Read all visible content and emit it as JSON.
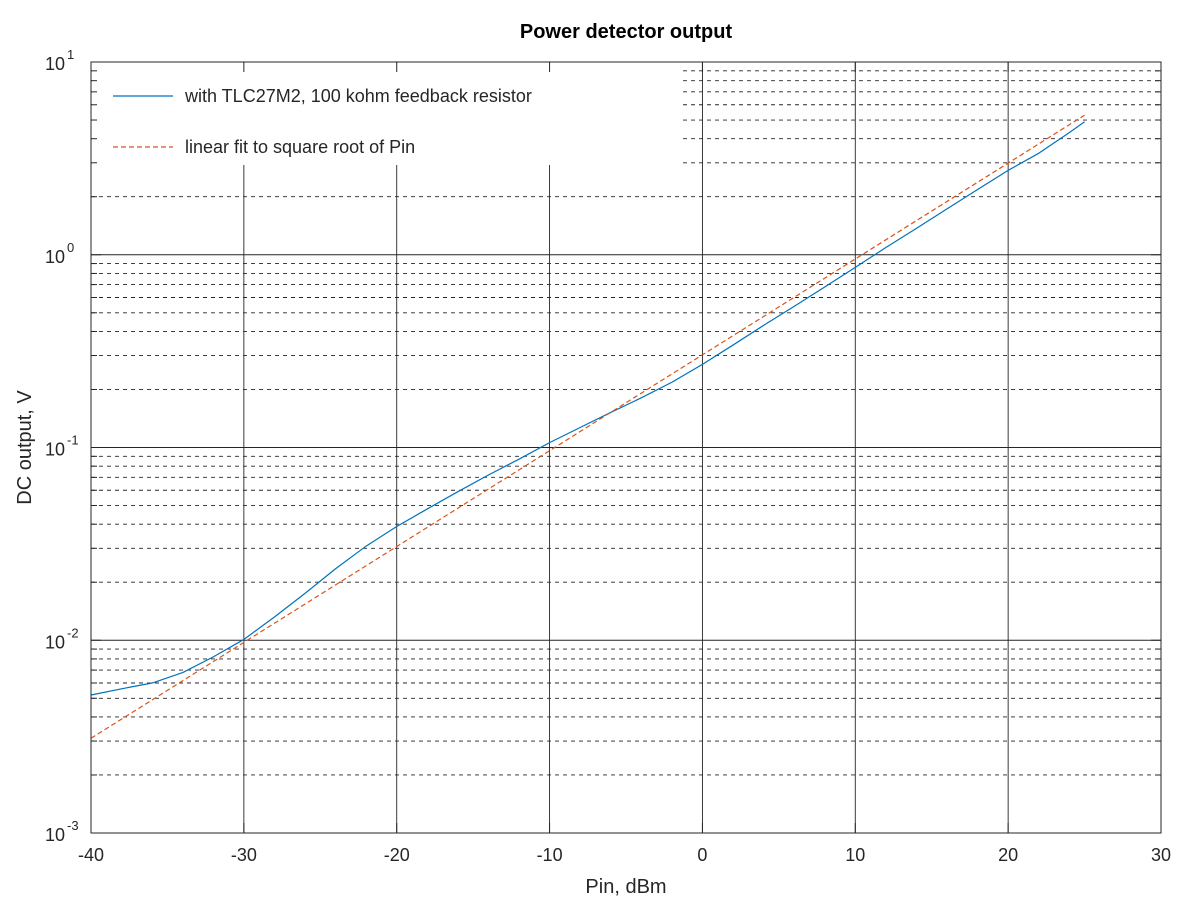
{
  "chart_data": {
    "type": "line",
    "title": "Power detector output",
    "xlabel": "Pin, dBm",
    "ylabel": "DC output, V",
    "xlim": [
      -40,
      30
    ],
    "ylim": [
      0.001,
      10
    ],
    "yscale": "log",
    "grid": true,
    "minor_grid": true,
    "legend_position": "top-left",
    "x_ticks": [
      -40,
      -30,
      -20,
      -10,
      0,
      10,
      20,
      30
    ],
    "x_tick_labels": [
      "-40",
      "-30",
      "-20",
      "-10",
      "0",
      "10",
      "20",
      "30"
    ],
    "y_ticks": [
      {
        "value": 0.001,
        "base": "10",
        "exp": "-3"
      },
      {
        "value": 0.01,
        "base": "10",
        "exp": "-2"
      },
      {
        "value": 0.1,
        "base": "10",
        "exp": "-1"
      },
      {
        "value": 1,
        "base": "10",
        "exp": "0"
      },
      {
        "value": 10,
        "base": "10",
        "exp": "1"
      }
    ],
    "series": [
      {
        "name": "with TLC27M2, 100 kohm feedback resistor",
        "style": "solid",
        "color": "#0072bd",
        "x": [
          -40,
          -38,
          -36,
          -34,
          -32,
          -30,
          -28,
          -26,
          -24,
          -22,
          -20,
          -18,
          -16,
          -14,
          -12,
          -10,
          -8,
          -6,
          -4,
          -2,
          0,
          2,
          4,
          6,
          8,
          10,
          12,
          14,
          16,
          18,
          20,
          22,
          24,
          25
        ],
        "y": [
          0.0052,
          0.0056,
          0.006,
          0.0068,
          0.0082,
          0.0101,
          0.0132,
          0.0175,
          0.0235,
          0.0308,
          0.0389,
          0.048,
          0.059,
          0.072,
          0.087,
          0.106,
          0.127,
          0.152,
          0.181,
          0.218,
          0.27,
          0.34,
          0.43,
          0.54,
          0.68,
          0.86,
          1.09,
          1.37,
          1.73,
          2.18,
          2.74,
          3.36,
          4.3,
          4.9
        ]
      },
      {
        "name": "linear fit to square root of Pin",
        "style": "dashed",
        "color": "#d95319",
        "x": [
          -40,
          25
        ],
        "y": [
          0.0031,
          5.3
        ]
      }
    ]
  }
}
